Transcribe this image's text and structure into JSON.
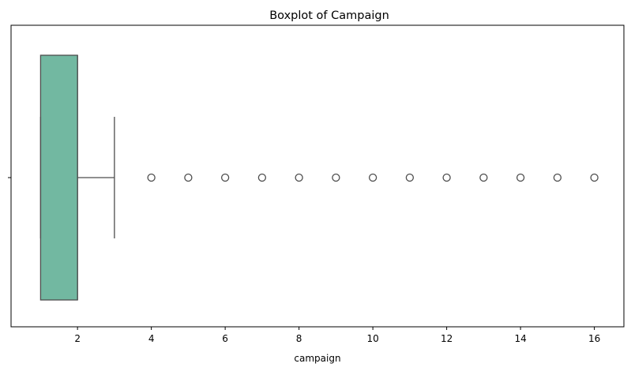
{
  "chart_data": {
    "type": "boxplot",
    "title": "Boxplot of Campaign",
    "xlabel": "campaign",
    "ylabel": "",
    "orientation": "horizontal",
    "xlim": [
      0.2,
      16.8
    ],
    "xticks": [
      2,
      4,
      6,
      8,
      10,
      12,
      14,
      16
    ],
    "grid": false,
    "legend": "none",
    "box": {
      "min": 1,
      "q1": 1,
      "median": 2,
      "q3": 2,
      "whisker_low": 1,
      "whisker_high": 3,
      "outliers": [
        4,
        5,
        6,
        7,
        8,
        9,
        10,
        11,
        12,
        13,
        14,
        15,
        16
      ]
    },
    "colors": {
      "box_fill": "#72b8a1",
      "line": "#4d4d4d",
      "outlier_edge": "#4d4d4d",
      "axis": "#000000"
    }
  }
}
